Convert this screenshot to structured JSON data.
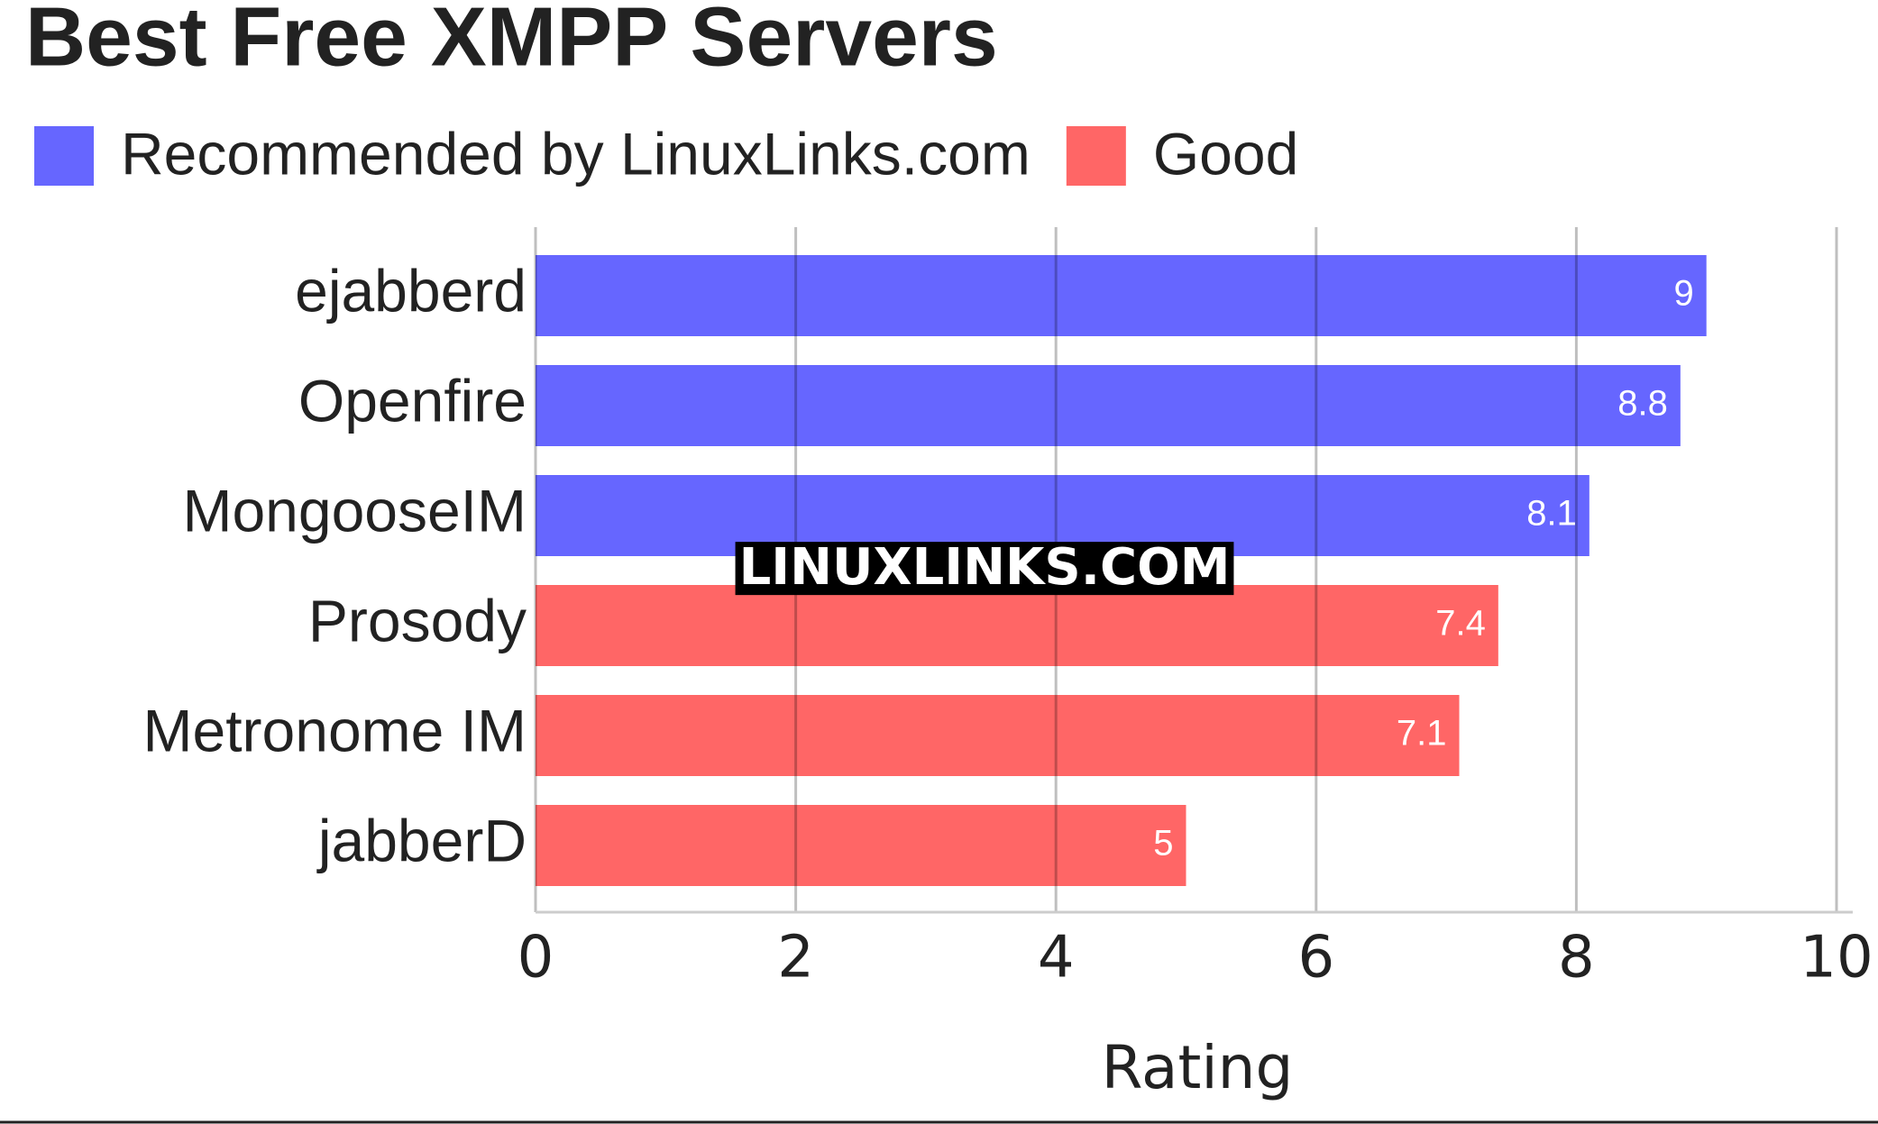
{
  "chart_data": {
    "type": "bar",
    "orientation": "horizontal",
    "title": "Best Free XMPP Servers",
    "categories": [
      "ejabberd",
      "Openfire",
      "MongooseIM",
      "Prosody",
      "Metronome IM",
      "jabberD"
    ],
    "series": [
      {
        "name": "Recommended by LinuxLinks.com",
        "color": "#6666ff",
        "values": [
          9,
          8.8,
          8.1,
          null,
          null,
          null
        ]
      },
      {
        "name": "Good",
        "color": "#ff6666",
        "values": [
          null,
          null,
          null,
          7.4,
          7.1,
          5
        ]
      }
    ],
    "xlabel": "Rating",
    "xlim": [
      0,
      10
    ],
    "xticks": [
      0,
      2,
      4,
      6,
      8,
      10
    ],
    "grid": true,
    "legend": "top",
    "watermark": "LINUXLINKS.COM"
  }
}
